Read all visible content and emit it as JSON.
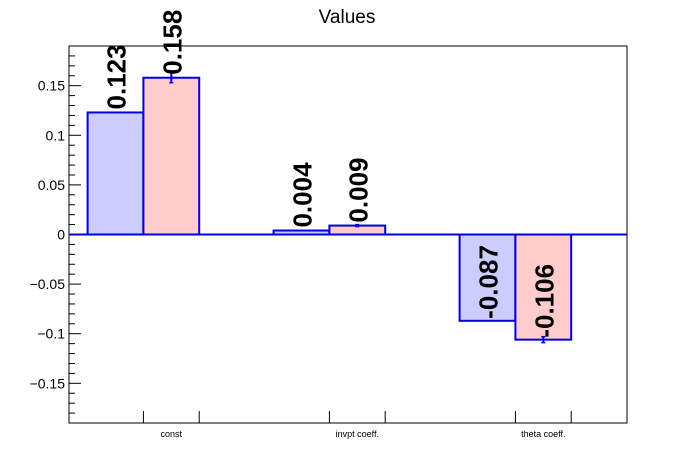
{
  "chart_data": {
    "type": "bar",
    "title": "Values",
    "xlabel": "",
    "ylabel": "",
    "categories": [
      "const",
      "invpt coeff.",
      "theta coeff."
    ],
    "ylim": [
      -0.19,
      0.19
    ],
    "yticks": [
      -0.15,
      -0.1,
      -0.05,
      0,
      0.05,
      0.1,
      0.15
    ],
    "ytick_labels": [
      "−0.15",
      "−0.1",
      "−0.05",
      "0",
      "0.05",
      "0.1",
      "0.15"
    ],
    "grid": false,
    "series": [
      {
        "values": [
          0.123,
          0.004,
          -0.087
        ],
        "value_labels": [
          "0.123",
          "0.004",
          "-0.087"
        ],
        "errors": [
          0.0,
          0.0,
          0.0
        ],
        "fill": "#ccccff",
        "edge": "#0000dd"
      },
      {
        "values": [
          0.158,
          0.009,
          -0.106
        ],
        "value_labels": [
          "0.158",
          "0.009",
          "-0.106"
        ],
        "errors": [
          0.005,
          0.001,
          0.003
        ],
        "fill": "#ffcccc",
        "edge": "#0000dd"
      }
    ],
    "baseline_color": "#0000dd"
  }
}
